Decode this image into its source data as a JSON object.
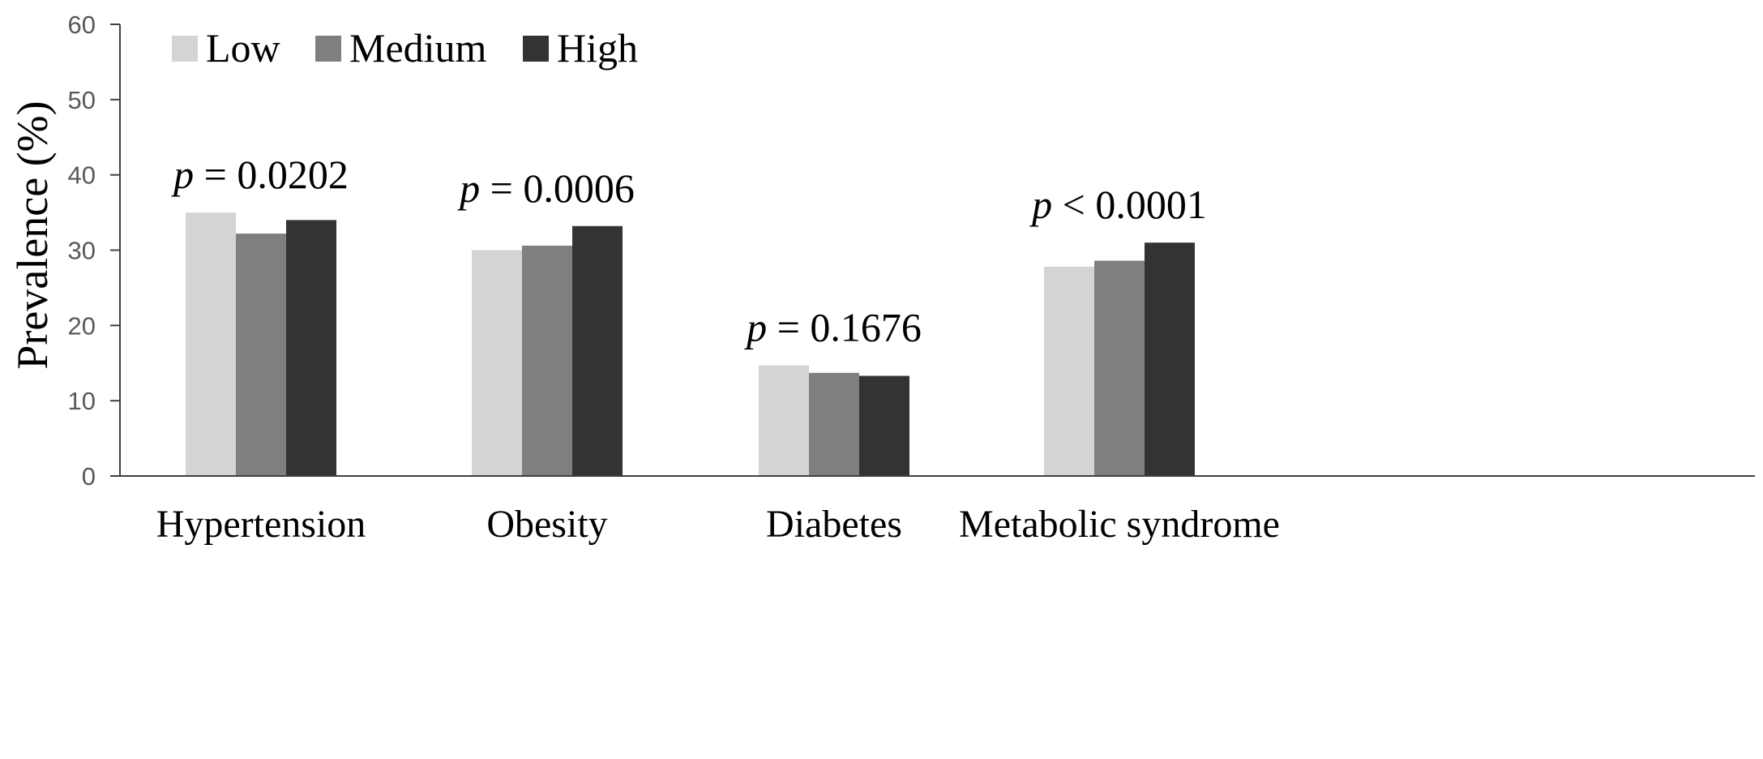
{
  "chart_data": {
    "type": "bar",
    "title": "",
    "xlabel": "",
    "ylabel": "Prevalence (%)",
    "ylim": [
      0,
      60
    ],
    "yticks": [
      0,
      10,
      20,
      30,
      40,
      50,
      60
    ],
    "categories": [
      "Hypertension",
      "Obesity",
      "Diabetes",
      "Metabolic syndrome"
    ],
    "series": [
      {
        "name": "Low",
        "color": "#d4d4d4",
        "values": [
          35.0,
          30.0,
          14.7,
          27.8
        ]
      },
      {
        "name": "Medium",
        "color": "#7f7f7f",
        "values": [
          32.2,
          30.6,
          13.7,
          28.6
        ]
      },
      {
        "name": "High",
        "color": "#333333",
        "values": [
          34.0,
          33.2,
          13.3,
          31.0
        ]
      }
    ],
    "annotations": [
      {
        "symbol": "p",
        "relation": "=",
        "value": "0.0202",
        "category": "Hypertension"
      },
      {
        "symbol": "p",
        "relation": "=",
        "value": "0.0006",
        "category": "Obesity"
      },
      {
        "symbol": "p",
        "relation": "=",
        "value": "0.1676",
        "category": "Diabetes"
      },
      {
        "symbol": "p",
        "relation": "<",
        "value": "0.0001",
        "category": "Metabolic syndrome"
      }
    ],
    "legend_position": "top-left",
    "grid": false,
    "axis_color": "#404040"
  }
}
